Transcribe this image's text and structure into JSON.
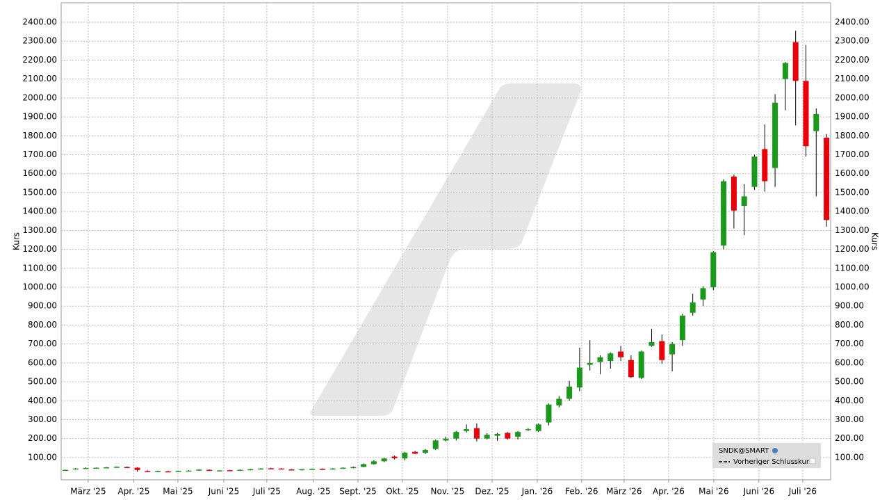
{
  "chart_data": {
    "type": "candlestick",
    "y_label": "Kurs",
    "categories": [
      null,
      null,
      null,
      null,
      null,
      null,
      null,
      null,
      null,
      null,
      null,
      null,
      null,
      null,
      null,
      null,
      null,
      null,
      null,
      null,
      null,
      null,
      null,
      null,
      null,
      null,
      null,
      null,
      null,
      null,
      null,
      null,
      null,
      null,
      null,
      null,
      null,
      null,
      null,
      null,
      null,
      null,
      null,
      null,
      null,
      null,
      null,
      null,
      null,
      null,
      null,
      null,
      null,
      null,
      null,
      null,
      null,
      null,
      null,
      null,
      null,
      null,
      null,
      null,
      null,
      null,
      null,
      null,
      null,
      null,
      null,
      null,
      null,
      null,
      null
    ],
    "series": [
      {
        "name": "SNDK@SMART",
        "up_color": "#1a9a1a",
        "down_color": "#e8000b",
        "open": [
          32,
          38,
          42,
          44,
          46,
          50,
          50,
          46,
          28,
          26,
          27,
          26,
          29,
          33,
          35,
          30,
          33,
          30,
          35,
          38,
          43,
          42,
          37,
          35,
          38,
          40,
          38,
          41,
          46,
          50,
          65,
          80,
          105,
          95,
          130,
          125,
          145,
          190,
          200,
          240,
          255,
          200,
          215,
          230,
          210,
          245,
          240,
          285,
          375,
          410,
          470,
          590,
          605,
          610,
          660,
          615,
          520,
          690,
          715,
          645,
          720,
          865,
          935,
          1000,
          1220,
          1585,
          1430,
          1530,
          1730,
          1630,
          2100,
          2295,
          2090,
          1825,
          1790
        ],
        "high": [
          36,
          44,
          48,
          47,
          50,
          53,
          52,
          48,
          32,
          30,
          30,
          30,
          33,
          38,
          37,
          33,
          35,
          37,
          40,
          44,
          46,
          44,
          39,
          40,
          42,
          43,
          44,
          48,
          52,
          68,
          85,
          98,
          110,
          130,
          135,
          145,
          195,
          210,
          240,
          275,
          280,
          228,
          230,
          235,
          240,
          255,
          280,
          385,
          425,
          505,
          680,
          720,
          640,
          655,
          690,
          640,
          665,
          780,
          750,
          710,
          860,
          965,
          1005,
          1190,
          1570,
          1595,
          1545,
          1700,
          1860,
          2020,
          2190,
          2355,
          2280,
          1945,
          1810
        ],
        "low": [
          30,
          36,
          40,
          42,
          44,
          47,
          46,
          25,
          22,
          23,
          24,
          24,
          26,
          30,
          29,
          27,
          28,
          29,
          33,
          36,
          40,
          37,
          33,
          33,
          36,
          37,
          36,
          39,
          42,
          48,
          62,
          76,
          90,
          85,
          118,
          118,
          140,
          185,
          190,
          232,
          185,
          195,
          188,
          195,
          195,
          240,
          235,
          270,
          365,
          400,
          450,
          560,
          540,
          570,
          610,
          520,
          515,
          685,
          595,
          555,
          690,
          850,
          900,
          985,
          1200,
          1310,
          1275,
          1515,
          1505,
          1530,
          1935,
          1855,
          1690,
          1480,
          1320
        ],
        "close": [
          35,
          42,
          45,
          46,
          48,
          51,
          48,
          34,
          26,
          28,
          26,
          29,
          31,
          36,
          31,
          32,
          30,
          35,
          38,
          42,
          41,
          39,
          35,
          38,
          40,
          39,
          42,
          46,
          50,
          65,
          80,
          95,
          96,
          125,
          120,
          140,
          190,
          200,
          235,
          250,
          200,
          220,
          225,
          200,
          235,
          250,
          275,
          380,
          410,
          475,
          575,
          600,
          630,
          650,
          630,
          525,
          660,
          710,
          615,
          700,
          850,
          920,
          995,
          1185,
          1560,
          1405,
          1480,
          1690,
          1560,
          1975,
          2185,
          2090,
          1745,
          1915,
          1355
        ]
      }
    ],
    "legend_items": [
      "Vorheriger Schlusskurs"
    ],
    "ylim": [
      -18,
      2503
    ],
    "yticks": [
      {
        "value": 100,
        "label": "100.00"
      },
      {
        "value": 200,
        "label": "200.00"
      },
      {
        "value": 300,
        "label": "300.00"
      },
      {
        "value": 400,
        "label": "400.00"
      },
      {
        "value": 500,
        "label": "500.00"
      },
      {
        "value": 600,
        "label": "600.00"
      },
      {
        "value": 700,
        "label": "700.00"
      },
      {
        "value": 800,
        "label": "800.00"
      },
      {
        "value": 900,
        "label": "900.00"
      },
      {
        "value": 1000,
        "label": "1000.00"
      },
      {
        "value": 1100,
        "label": "1100.00"
      },
      {
        "value": 1200,
        "label": "1200.00"
      },
      {
        "value": 1300,
        "label": "1300.00"
      },
      {
        "value": 1400,
        "label": "1400.00"
      },
      {
        "value": 1500,
        "label": "1500.00"
      },
      {
        "value": 1600,
        "label": "1600.00"
      },
      {
        "value": 1700,
        "label": "1700.00"
      },
      {
        "value": 1800,
        "label": "1800.00"
      },
      {
        "value": 1900,
        "label": "1900.00"
      },
      {
        "value": 2000,
        "label": "2000.00"
      },
      {
        "value": 2100,
        "label": "2100.00"
      },
      {
        "value": 2200,
        "label": "2200.00"
      },
      {
        "value": 2300,
        "label": "2300.00"
      },
      {
        "value": 2400,
        "label": "2400.00"
      }
    ],
    "xlim": [
      -0.4,
      74.4
    ],
    "xticks": [
      {
        "value": 2.23,
        "label": "März '25"
      },
      {
        "value": 6.66,
        "label": "Apr. '25"
      },
      {
        "value": 10.95,
        "label": "Mai '25"
      },
      {
        "value": 15.41,
        "label": "Juni '25"
      },
      {
        "value": 19.59,
        "label": "Juli '25"
      },
      {
        "value": 24.12,
        "label": "Aug. '25"
      },
      {
        "value": 28.45,
        "label": "Sept. '25"
      },
      {
        "value": 32.77,
        "label": "Okt. '25"
      },
      {
        "value": 37.16,
        "label": "Nov. '25"
      },
      {
        "value": 41.49,
        "label": "Dez. '25"
      },
      {
        "value": 45.88,
        "label": "Jan. '26"
      },
      {
        "value": 50.2,
        "label": "Feb. '26"
      },
      {
        "value": 54.32,
        "label": "März '26"
      },
      {
        "value": 58.65,
        "label": "Apr. '26"
      },
      {
        "value": 63.04,
        "label": "Mai '26"
      },
      {
        "value": 67.43,
        "label": "Juni '26"
      },
      {
        "value": 71.69,
        "label": "Juli '26"
      }
    ],
    "grid": true
  }
}
